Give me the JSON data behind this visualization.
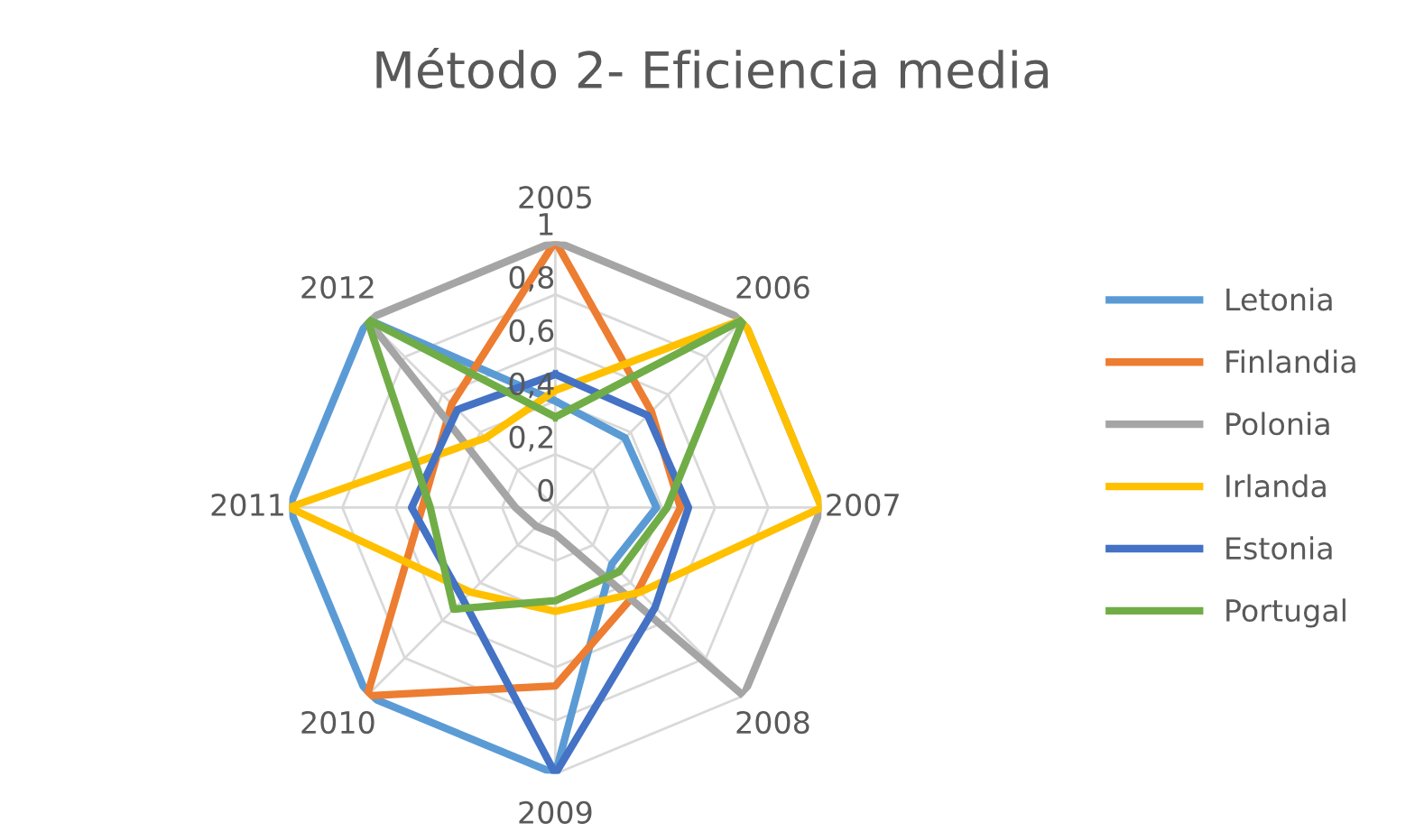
{
  "chart_data": {
    "type": "radar",
    "title": "Método 2- Eficiencia media",
    "categories": [
      "2005",
      "2006",
      "2007",
      "2008",
      "2009",
      "2010",
      "2011",
      "2012"
    ],
    "ylim": [
      0,
      1
    ],
    "yticks": [
      0,
      {
        "value": 0.2,
        "label": "0,2"
      },
      {
        "value": 0.4,
        "label": "0,4"
      },
      {
        "value": 0.6,
        "label": "0,6"
      },
      {
        "value": 0.8,
        "label": "0,8"
      },
      1
    ],
    "grid": true,
    "legend": "right",
    "marker": "none",
    "line_style": "solid",
    "series": [
      {
        "name": "Letonia",
        "color": "#5b9bd5",
        "values": [
          0.4,
          0.37,
          0.38,
          0.3,
          1,
          1,
          1,
          1
        ]
      },
      {
        "name": "Finlandia",
        "color": "#ed7d31",
        "values": [
          1,
          0.51,
          0.47,
          0.44,
          0.67,
          1,
          0.5,
          0.55
        ]
      },
      {
        "name": "Polonia",
        "color": "#a5a5a5",
        "values": [
          1,
          1,
          1,
          1,
          0.1,
          0.1,
          0.15,
          1
        ]
      },
      {
        "name": "Irlanda",
        "color": "#ffc000",
        "values": [
          0.44,
          1,
          1,
          0.45,
          0.39,
          0.45,
          1,
          0.37
        ]
      },
      {
        "name": "Estonia",
        "color": "#4472c4",
        "values": [
          0.5,
          0.49,
          0.5,
          0.53,
          1,
          0.49,
          0.54,
          0.52
        ]
      },
      {
        "name": "Portugal",
        "color": "#70ad47",
        "values": [
          0.34,
          1,
          0.42,
          0.34,
          0.35,
          0.54,
          0.47,
          1
        ]
      }
    ]
  }
}
